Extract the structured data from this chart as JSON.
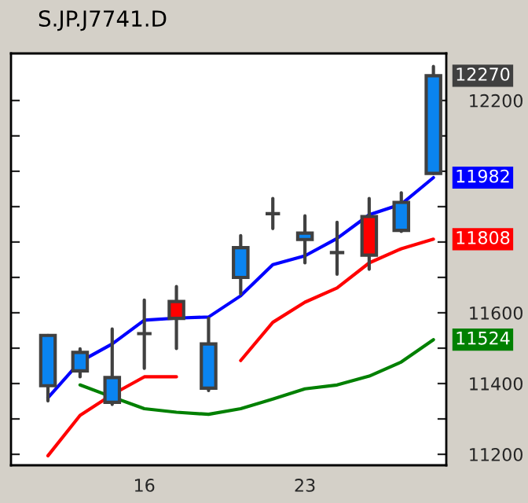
{
  "chart_data": {
    "type": "candlestick",
    "title": "S.JP.J7741.D",
    "categories": [
      null,
      null,
      null,
      "16",
      null,
      null,
      null,
      null,
      "23",
      null,
      null,
      null,
      null
    ],
    "ohlc": [
      [
        11394,
        11536,
        11351,
        11536
      ],
      [
        11436,
        11498,
        11419,
        11488
      ],
      [
        11347,
        11554,
        11341,
        11417
      ],
      [
        11541,
        11636,
        11443,
        11541
      ],
      [
        11632,
        11674,
        11499,
        11584
      ],
      [
        11387,
        11584,
        11380,
        11512
      ],
      [
        11700,
        11818,
        11653,
        11784
      ],
      [
        11880,
        11923,
        11838,
        11880
      ],
      [
        11807,
        11874,
        11741,
        11825
      ],
      [
        11770,
        11856,
        11709,
        11770
      ],
      [
        11872,
        11923,
        11723,
        11763
      ],
      [
        11833,
        11939,
        11830,
        11912
      ],
      [
        11994,
        12296,
        11994,
        12270
      ]
    ],
    "series": [
      {
        "type": "line",
        "color": "#0000ff",
        "values": [
          11360,
          11462,
          11512,
          11579,
          11585,
          11588,
          11648,
          11736,
          11761,
          11810,
          11877,
          11907,
          11982
        ]
      },
      {
        "type": "line",
        "color": "#ff0000",
        "values": [
          11196,
          11310,
          11369,
          11419,
          11419,
          null,
          11465,
          11573,
          11630,
          11670,
          11741,
          11781,
          11808
        ]
      },
      {
        "type": "line",
        "color": "#008000",
        "values": [
          null,
          11396,
          11362,
          11329,
          11319,
          11313,
          11329,
          11356,
          11385,
          11396,
          11421,
          11461,
          11524
        ]
      }
    ],
    "ylim": [
      11169,
      12333
    ],
    "yticks": [
      11200,
      {
        "value": 11300,
        "label": null
      },
      11400,
      {
        "value": 11500,
        "label": null
      },
      11600,
      {
        "value": 11700,
        "label": null
      },
      {
        "value": 11800,
        "label": null
      },
      {
        "value": 11900,
        "label": null
      },
      {
        "value": 12000,
        "label": null
      },
      {
        "value": 12100,
        "label": null
      },
      12200
    ],
    "annotations": [
      "12270",
      "11982",
      "11808",
      "11524"
    ],
    "grid": false,
    "legend": false
  }
}
